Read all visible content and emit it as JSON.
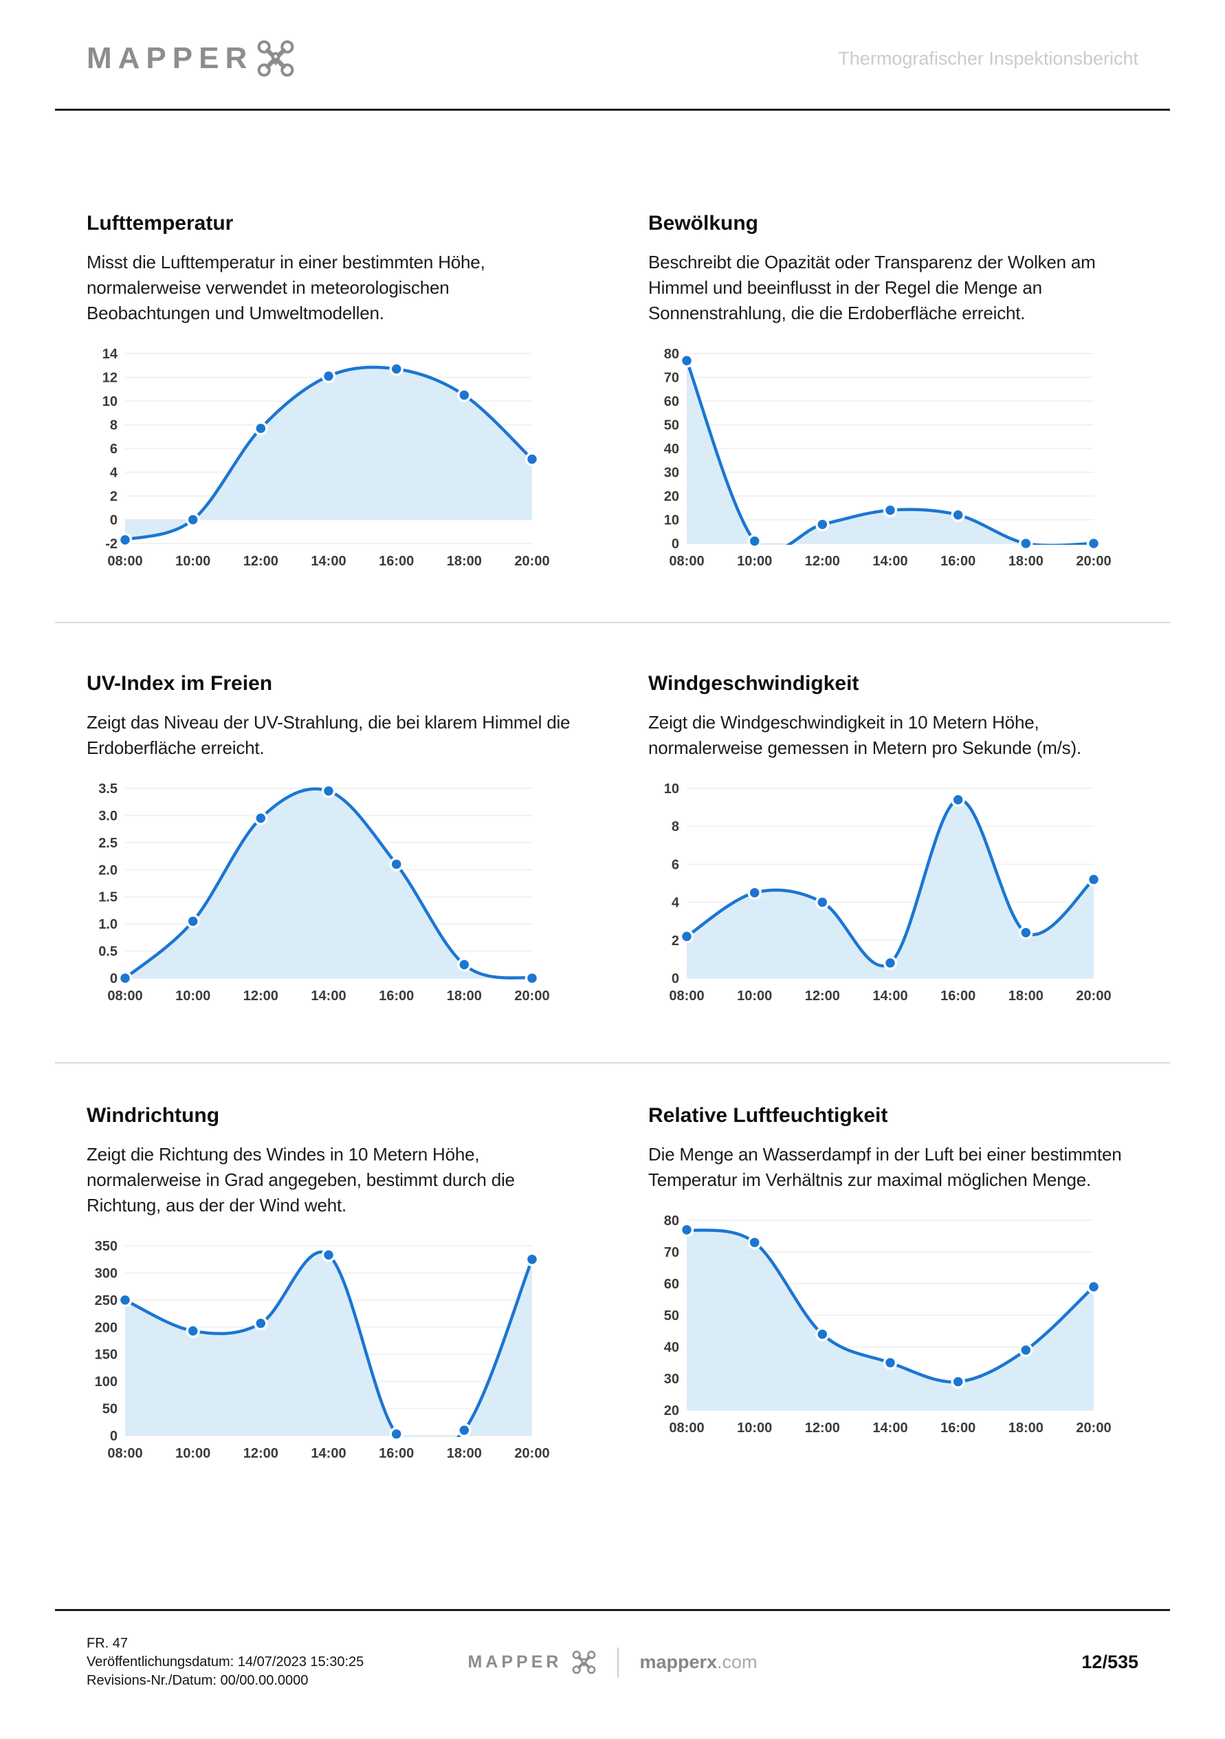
{
  "header": {
    "brand": "MAPPER",
    "doc_title": "Thermografischer Inspektionsbericht"
  },
  "sections": [
    {
      "title": "Lufttemperatur",
      "description": "Misst die Lufttemperatur in einer bestimmten Höhe, normalerweise verwendet in meteorologischen Beobachtungen und Umweltmodellen."
    },
    {
      "title": "Bewölkung",
      "description": "Beschreibt die Opazität oder Transparenz der Wolken am Himmel und beeinflusst in der Regel die Menge an Sonnenstrahlung, die die Erdoberfläche erreicht."
    },
    {
      "title": "UV-Index im Freien",
      "description": "Zeigt das Niveau der UV-Strahlung, die bei klarem Himmel die Erdoberfläche erreicht."
    },
    {
      "title": "Windgeschwindigkeit",
      "description": "Zeigt die Windgeschwindigkeit in 10 Metern Höhe, normalerweise gemessen in Metern pro Sekunde (m/s)."
    },
    {
      "title": "Windrichtung",
      "description": "Zeigt die Richtung des Windes in 10 Metern Höhe, normalerweise in Grad angegeben, bestimmt durch die Richtung, aus der der Wind weht."
    },
    {
      "title": "Relative Luftfeuchtigkeit",
      "description": "Die Menge an Wasserdampf in der Luft bei einer bestimmten Temperatur im Verhältnis zur maximal möglichen Menge."
    }
  ],
  "chart_data": [
    {
      "type": "area",
      "title": "Lufttemperatur",
      "x": [
        "08:00",
        "10:00",
        "12:00",
        "14:00",
        "16:00",
        "18:00",
        "20:00"
      ],
      "values": [
        -1.7,
        0,
        7.7,
        12.1,
        12.7,
        10.5,
        5.1
      ],
      "ylim": [
        -2,
        14
      ],
      "yticks": [
        "-2",
        "0",
        "2",
        "4",
        "6",
        "8",
        "10",
        "12",
        "14"
      ],
      "grid": true,
      "legend": "none"
    },
    {
      "type": "area",
      "title": "Bewölkung",
      "x": [
        "08:00",
        "10:00",
        "12:00",
        "14:00",
        "16:00",
        "18:00",
        "20:00"
      ],
      "values": [
        77,
        1,
        8,
        14,
        12,
        0,
        0
      ],
      "ylim": [
        0,
        80
      ],
      "yticks": [
        "0",
        "10",
        "20",
        "30",
        "40",
        "50",
        "60",
        "70",
        "80"
      ],
      "grid": true,
      "legend": "none"
    },
    {
      "type": "area",
      "title": "UV-Index im Freien",
      "x": [
        "08:00",
        "10:00",
        "12:00",
        "14:00",
        "16:00",
        "18:00",
        "20:00"
      ],
      "values": [
        0,
        1.05,
        2.95,
        3.45,
        2.1,
        0.25,
        0
      ],
      "ylim": [
        0,
        3.5
      ],
      "yticks": [
        "0",
        "0.5",
        "1.0",
        "1.5",
        "2.0",
        "2.5",
        "3.0",
        "3.5"
      ],
      "grid": true,
      "legend": "none"
    },
    {
      "type": "area",
      "title": "Windgeschwindigkeit",
      "x": [
        "08:00",
        "10:00",
        "12:00",
        "14:00",
        "16:00",
        "18:00",
        "20:00"
      ],
      "values": [
        2.2,
        4.5,
        4,
        0.8,
        9.4,
        2.4,
        5.2
      ],
      "ylim": [
        0,
        10
      ],
      "yticks": [
        "0",
        "2",
        "4",
        "6",
        "8",
        "10"
      ],
      "grid": true,
      "legend": "none"
    },
    {
      "type": "area",
      "title": "Windrichtung",
      "x": [
        "08:00",
        "10:00",
        "12:00",
        "14:00",
        "16:00",
        "18:00",
        "20:00"
      ],
      "values": [
        250,
        193,
        207,
        333,
        3,
        10,
        325
      ],
      "ylim": [
        0,
        350
      ],
      "yticks": [
        "0",
        "50",
        "100",
        "150",
        "200",
        "250",
        "300",
        "350"
      ],
      "grid": true,
      "legend": "none"
    },
    {
      "type": "area",
      "title": "Relative Luftfeuchtigkeit",
      "x": [
        "08:00",
        "10:00",
        "12:00",
        "14:00",
        "16:00",
        "18:00",
        "20:00"
      ],
      "values": [
        77,
        73,
        44,
        35,
        29,
        39,
        59
      ],
      "ylim": [
        20,
        80
      ],
      "yticks": [
        "20",
        "30",
        "40",
        "50",
        "60",
        "70",
        "80"
      ],
      "grid": true,
      "legend": "none"
    }
  ],
  "style": {
    "line_color": "#1b76d2",
    "fill_color": "#cfe5f7",
    "grid_color": "#ededed",
    "tick_color": "#3b3b3b"
  },
  "footer": {
    "report_number": "FR. 47",
    "publish_line": "Veröffentlichungsdatum: 14/07/2023 15:30:25",
    "revision_line": "Revisions-Nr./Datum: 00/00.00.0000",
    "brand": "MAPPER",
    "site_name": "mapperx",
    "site_tld": ".com",
    "page_indicator": "12/535"
  }
}
